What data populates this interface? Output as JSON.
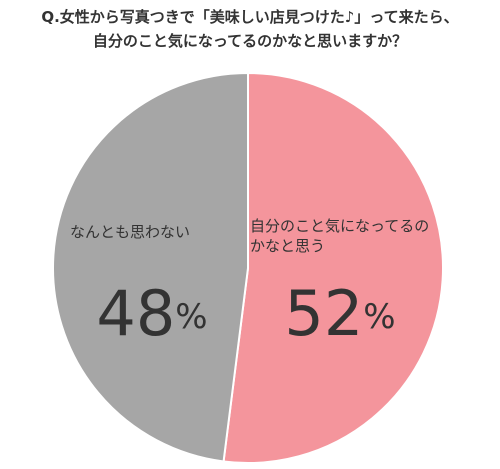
{
  "chart_data": {
    "type": "pie",
    "title": [
      "Q.女性から写真つきで「美味しい店見つけた♪」って来たら、",
      "自分のこと気になってるのかなと思いますか？"
    ],
    "categories": [
      "自分のこと気になってるのかなと思う",
      "なんとも思わない"
    ],
    "values": [
      52,
      48
    ],
    "value_labels": [
      "52%",
      "48%"
    ],
    "colors": [
      "#f4959c",
      "#a6a6a6"
    ]
  }
}
